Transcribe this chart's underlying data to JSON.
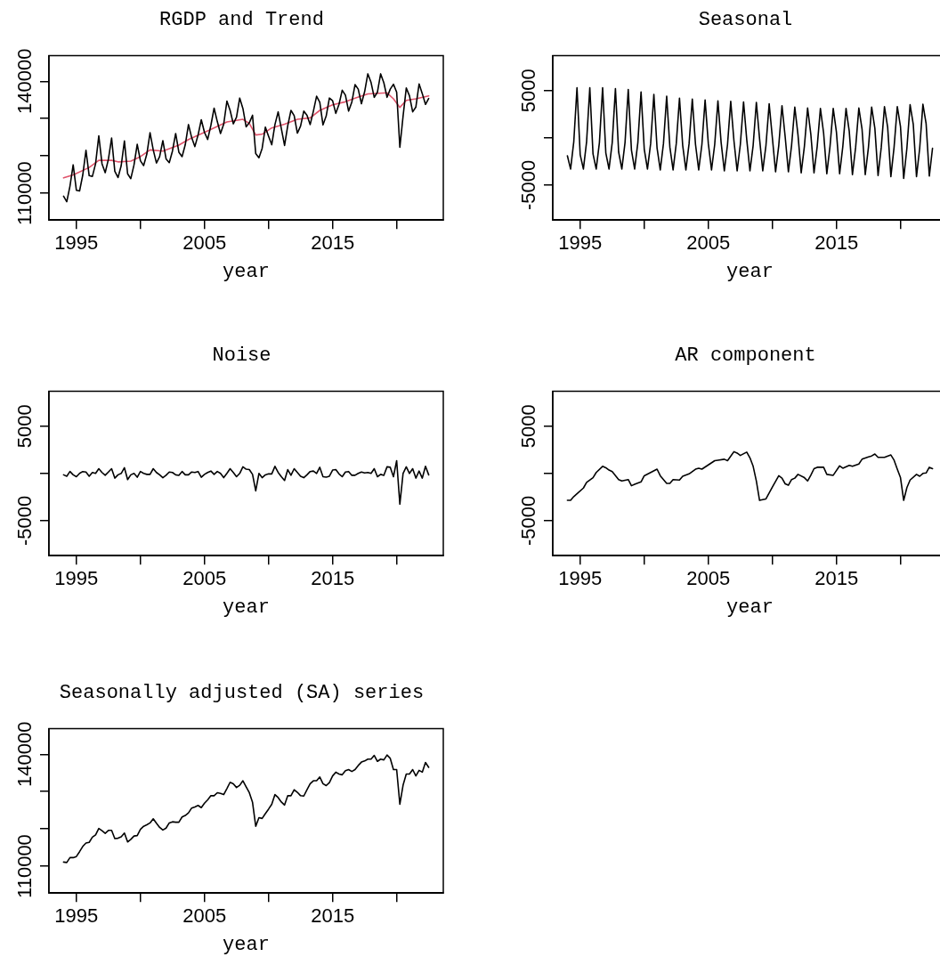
{
  "chart_data": [
    {
      "type": "line",
      "title": "RGDP and Trend",
      "xlabel": "year",
      "xlim": [
        1992.86,
        2023.64
      ],
      "xticks": [
        1995,
        {
          "value": 2000,
          "label": null
        },
        2005,
        {
          "value": 2010,
          "label": null
        },
        2015,
        {
          "value": 2020,
          "label": null
        }
      ],
      "ylim": [
        102800,
        146900
      ],
      "yticks": [
        110000,
        {
          "value": 120000,
          "label": null
        },
        {
          "value": 130000,
          "label": null
        },
        140000
      ],
      "x": [
        1994,
        1994.25,
        1994.5,
        1994.75,
        1995,
        1995.25,
        1995.5,
        1995.75,
        1996,
        1996.25,
        1996.5,
        1996.75,
        1997,
        1997.25,
        1997.5,
        1997.75,
        1998,
        1998.25,
        1998.5,
        1998.75,
        1999,
        1999.25,
        1999.5,
        1999.75,
        2000,
        2000.25,
        2000.5,
        2000.75,
        2001,
        2001.25,
        2001.5,
        2001.75,
        2002,
        2002.25,
        2002.5,
        2002.75,
        2003,
        2003.25,
        2003.5,
        2003.75,
        2004,
        2004.25,
        2004.5,
        2004.75,
        2005,
        2005.25,
        2005.5,
        2005.75,
        2006,
        2006.25,
        2006.5,
        2006.75,
        2007,
        2007.25,
        2007.5,
        2007.75,
        2008,
        2008.25,
        2008.5,
        2008.75,
        2009,
        2009.25,
        2009.5,
        2009.75,
        2010,
        2010.25,
        2010.5,
        2010.75,
        2011,
        2011.25,
        2011.5,
        2011.75,
        2012,
        2012.25,
        2012.5,
        2012.75,
        2013,
        2013.25,
        2013.5,
        2013.75,
        2014,
        2014.25,
        2014.5,
        2014.75,
        2015,
        2015.25,
        2015.5,
        2015.75,
        2016,
        2016.25,
        2016.5,
        2016.75,
        2017,
        2017.25,
        2017.5,
        2017.75,
        2018,
        2018.25,
        2018.5,
        2018.75,
        2019,
        2019.25,
        2019.5,
        2019.75,
        2020,
        2020.25,
        2020.5,
        2020.75,
        2021,
        2021.25,
        2021.5,
        2021.75,
        2022,
        2022.25,
        2022.5
      ],
      "series": [
        {
          "color": "#000000",
          "values": [
            109200,
            107700,
            111900,
            117600,
            110800,
            110600,
            114900,
            121500,
            114700,
            114500,
            117900,
            125400,
            117900,
            115500,
            119100,
            124800,
            115900,
            114200,
            117400,
            124000,
            115200,
            113900,
            117600,
            123100,
            118700,
            117400,
            120500,
            126200,
            121600,
            118100,
            119800,
            124100,
            119200,
            118200,
            121300,
            126000,
            121000,
            119800,
            123000,
            128400,
            124900,
            122500,
            125600,
            129700,
            126300,
            124400,
            128200,
            132800,
            129200,
            126000,
            128500,
            134700,
            132200,
            128600,
            130400,
            135500,
            132700,
            127800,
            128900,
            130900,
            120600,
            119500,
            122000,
            127700,
            125300,
            123000,
            128400,
            131800,
            127300,
            122800,
            128100,
            132200,
            130800,
            126100,
            128000,
            132000,
            130900,
            128400,
            132000,
            136000,
            134400,
            128300,
            130700,
            135500,
            134800,
            131400,
            133800,
            137600,
            136300,
            132000,
            134400,
            139100,
            137900,
            134000,
            137200,
            142000,
            139700,
            135700,
            137100,
            142000,
            139600,
            135700,
            137900,
            139200,
            137100,
            122300,
            130600,
            138200,
            136100,
            131800,
            133100,
            139300,
            136700,
            133800,
            135400
          ]
        },
        {
          "color": "#df536b",
          "x": [
            1994,
            1994.75,
            1996,
            1996.75,
            1997.75,
            1998.25,
            1999.25,
            2000,
            2000.75,
            2001.75,
            2003,
            2003.75,
            2005.25,
            2006.75,
            2008,
            2008.5,
            2009,
            2009.5,
            2010.25,
            2011.25,
            2012.25,
            2013.25,
            2014,
            2015,
            2016,
            2016.75,
            2017.75,
            2019.25,
            2019.75,
            2020.25,
            2020.75,
            2021.5,
            2022.5
          ],
          "values": [
            114100,
            114900,
            116900,
            118800,
            118800,
            118400,
            118600,
            119800,
            121600,
            121300,
            122900,
            124400,
            126700,
            129100,
            129800,
            128700,
            125600,
            125800,
            127500,
            128500,
            129800,
            130200,
            132200,
            133700,
            134500,
            135500,
            136600,
            136900,
            135300,
            133000,
            134900,
            135300,
            136100
          ]
        }
      ]
    },
    {
      "type": "line",
      "title": "Seasonal",
      "xlabel": "year",
      "xlim": [
        1992.86,
        2023.64
      ],
      "xticks": [
        1995,
        {
          "value": 2000,
          "label": null
        },
        2005,
        {
          "value": 2010,
          "label": null
        },
        2015,
        {
          "value": 2020,
          "label": null
        }
      ],
      "ylim": [
        -8700,
        8700
      ],
      "yticks": [
        -5000,
        {
          "value": 0,
          "label": null
        },
        5000
      ],
      "x": [
        1994,
        1994.25,
        1994.5,
        1994.75,
        1995,
        1995.25,
        1995.5,
        1995.75,
        1996,
        1996.25,
        1996.5,
        1996.75,
        1997,
        1997.25,
        1997.5,
        1997.75,
        1998,
        1998.25,
        1998.5,
        1998.75,
        1999,
        1999.25,
        1999.5,
        1999.75,
        2000,
        2000.25,
        2000.5,
        2000.75,
        2001,
        2001.25,
        2001.5,
        2001.75,
        2002,
        2002.25,
        2002.5,
        2002.75,
        2003,
        2003.25,
        2003.5,
        2003.75,
        2004,
        2004.25,
        2004.5,
        2004.75,
        2005,
        2005.25,
        2005.5,
        2005.75,
        2006,
        2006.25,
        2006.5,
        2006.75,
        2007,
        2007.25,
        2007.5,
        2007.75,
        2008,
        2008.25,
        2008.5,
        2008.75,
        2009,
        2009.25,
        2009.5,
        2009.75,
        2010,
        2010.25,
        2010.5,
        2010.75,
        2011,
        2011.25,
        2011.5,
        2011.75,
        2012,
        2012.25,
        2012.5,
        2012.75,
        2013,
        2013.25,
        2013.5,
        2013.75,
        2014,
        2014.25,
        2014.5,
        2014.75,
        2015,
        2015.25,
        2015.5,
        2015.75,
        2016,
        2016.25,
        2016.5,
        2016.75,
        2017,
        2017.25,
        2017.5,
        2017.75,
        2018,
        2018.25,
        2018.5,
        2018.75,
        2019,
        2019.25,
        2019.5,
        2019.75,
        2020,
        2020.25,
        2020.5,
        2020.75,
        2021,
        2021.25,
        2021.5,
        2021.75,
        2022,
        2022.25,
        2022.5
      ],
      "series": [
        {
          "color": "#000000",
          "values": [
            -1900,
            -3300,
            -400,
            5300,
            -1800,
            -3300,
            -400,
            5300,
            -1700,
            -3300,
            -500,
            5300,
            -1600,
            -3300,
            -500,
            5200,
            -1500,
            -3300,
            -500,
            5100,
            -1300,
            -3300,
            -500,
            4850,
            -1200,
            -3300,
            -600,
            4600,
            -1100,
            -3400,
            -600,
            4400,
            -1000,
            -3400,
            -600,
            4200,
            -800,
            -3400,
            -600,
            4100,
            -700,
            -3400,
            -700,
            4000,
            -600,
            -3400,
            -700,
            3900,
            -500,
            -3500,
            -700,
            3850,
            -300,
            -3500,
            -700,
            3800,
            -200,
            -3500,
            -800,
            3750,
            -100,
            -3500,
            -800,
            3600,
            0,
            -3600,
            -800,
            3400,
            100,
            -3600,
            -800,
            3250,
            300,
            -3700,
            -900,
            3150,
            400,
            -3700,
            -900,
            3100,
            500,
            -3800,
            -900,
            3100,
            600,
            -3800,
            -900,
            3100,
            700,
            -3900,
            -1000,
            3150,
            900,
            -3900,
            -1000,
            3250,
            1000,
            -4000,
            -1000,
            3300,
            1100,
            -4100,
            -1000,
            3300,
            1200,
            -4300,
            -1100,
            3500,
            1400,
            -4100,
            -1100,
            3550,
            1500,
            -4050,
            -1100
          ]
        }
      ]
    },
    {
      "type": "line",
      "title": "Noise",
      "xlabel": "year",
      "xlim": [
        1992.86,
        2023.64
      ],
      "xticks": [
        1995,
        {
          "value": 2000,
          "label": null
        },
        2005,
        {
          "value": 2010,
          "label": null
        },
        2015,
        {
          "value": 2020,
          "label": null
        }
      ],
      "ylim": [
        -8700,
        8700
      ],
      "yticks": [
        -5000,
        {
          "value": 0,
          "label": null
        },
        5000
      ],
      "x": [
        1994,
        1994.25,
        1994.5,
        1994.75,
        1995,
        1995.25,
        1995.5,
        1995.75,
        1996,
        1996.25,
        1996.5,
        1996.75,
        1997,
        1997.25,
        1997.5,
        1997.75,
        1998,
        1998.25,
        1998.5,
        1998.75,
        1999,
        1999.25,
        1999.5,
        1999.75,
        2000,
        2000.25,
        2000.5,
        2000.75,
        2001,
        2001.25,
        2001.5,
        2001.75,
        2002,
        2002.25,
        2002.5,
        2002.75,
        2003,
        2003.25,
        2003.5,
        2003.75,
        2004,
        2004.25,
        2004.5,
        2004.75,
        2005,
        2005.25,
        2005.5,
        2005.75,
        2006,
        2006.25,
        2006.5,
        2006.75,
        2007,
        2007.25,
        2007.5,
        2007.75,
        2008,
        2008.25,
        2008.5,
        2008.75,
        2009,
        2009.25,
        2009.5,
        2009.75,
        2010,
        2010.25,
        2010.5,
        2010.75,
        2011,
        2011.25,
        2011.5,
        2011.75,
        2012,
        2012.25,
        2012.5,
        2012.75,
        2013,
        2013.25,
        2013.5,
        2013.75,
        2014,
        2014.25,
        2014.5,
        2014.75,
        2015,
        2015.25,
        2015.5,
        2015.75,
        2016,
        2016.25,
        2016.5,
        2016.75,
        2017,
        2017.25,
        2017.5,
        2017.75,
        2018,
        2018.25,
        2018.5,
        2018.75,
        2019,
        2019.25,
        2019.5,
        2019.75,
        2020,
        2020.25,
        2020.5,
        2020.75,
        2021,
        2021.25,
        2021.5,
        2021.75,
        2022,
        2022.25,
        2022.5
      ],
      "series": [
        {
          "color": "#000000",
          "values": [
            -150,
            -300,
            200,
            -150,
            -350,
            0,
            200,
            150,
            -300,
            100,
            0,
            500,
            100,
            -200,
            150,
            500,
            -500,
            -150,
            0,
            600,
            -650,
            -150,
            0,
            -400,
            200,
            0,
            -100,
            -100,
            500,
            100,
            -150,
            -450,
            -200,
            150,
            100,
            -150,
            -200,
            200,
            -150,
            -150,
            150,
            100,
            200,
            -400,
            -100,
            100,
            250,
            -100,
            200,
            0,
            -450,
            0,
            500,
            100,
            -350,
            0,
            700,
            450,
            400,
            -100,
            -1850,
            0,
            -450,
            -150,
            -50,
            -50,
            750,
            100,
            -350,
            -750,
            400,
            -200,
            500,
            100,
            -300,
            -450,
            -150,
            200,
            250,
            0,
            650,
            -350,
            -400,
            -300,
            350,
            400,
            -50,
            -350,
            150,
            200,
            -200,
            -200,
            0,
            150,
            50,
            100,
            0,
            500,
            -350,
            -100,
            -200,
            700,
            650,
            -350,
            1350,
            -3250,
            0,
            700,
            0,
            500,
            -500,
            250,
            -500,
            750,
            -150
          ]
        }
      ]
    },
    {
      "type": "line",
      "title": "AR component",
      "xlabel": "year",
      "xlim": [
        1992.86,
        2023.64
      ],
      "xticks": [
        1995,
        {
          "value": 2000,
          "label": null
        },
        2005,
        {
          "value": 2010,
          "label": null
        },
        2015,
        {
          "value": 2020,
          "label": null
        }
      ],
      "ylim": [
        -8700,
        8700
      ],
      "yticks": [
        -5000,
        {
          "value": 0,
          "label": null
        },
        5000
      ],
      "x": [
        1994,
        1994.25,
        1994.5,
        1994.75,
        1995.25,
        1995.5,
        1996,
        1996.25,
        1996.75,
        1997,
        1997.25,
        1997.5,
        1998,
        1998.25,
        1998.75,
        1999,
        1999.25,
        1999.75,
        2000,
        2000.5,
        2001,
        2001.25,
        2001.75,
        2002,
        2002.25,
        2002.75,
        2003,
        2003.5,
        2004,
        2004.25,
        2004.5,
        2005,
        2005.5,
        2005.75,
        2006.25,
        2006.5,
        2007,
        2007.25,
        2007.5,
        2008,
        2008.25,
        2008.5,
        2008.75,
        2009,
        2009.5,
        2010,
        2010.5,
        2010.75,
        2011,
        2011.25,
        2011.5,
        2011.75,
        2012,
        2012.5,
        2012.75,
        2013,
        2013.25,
        2013.5,
        2014,
        2014.25,
        2014.75,
        2015.25,
        2015.5,
        2016,
        2016.25,
        2016.75,
        2017,
        2017.5,
        2017.75,
        2018,
        2018.25,
        2018.75,
        2019.25,
        2019.5,
        2019.75,
        2020,
        2020.25,
        2020.5,
        2020.75,
        2021.25,
        2021.5,
        2021.75,
        2022,
        2022.25,
        2022.5
      ],
      "series": [
        {
          "color": "#000000",
          "values": [
            -2850,
            -2850,
            -2450,
            -2150,
            -1550,
            -950,
            -450,
            100,
            750,
            600,
            350,
            200,
            -650,
            -800,
            -650,
            -1300,
            -1150,
            -900,
            -250,
            100,
            450,
            -250,
            -1050,
            -1050,
            -650,
            -700,
            -300,
            -50,
            450,
            550,
            450,
            900,
            1350,
            1400,
            1500,
            1350,
            2300,
            2150,
            1900,
            2250,
            1650,
            750,
            -800,
            -2850,
            -2700,
            -1450,
            -250,
            -500,
            -1100,
            -1250,
            -650,
            -500,
            -100,
            -450,
            -800,
            -200,
            500,
            650,
            650,
            -100,
            -200,
            800,
            550,
            850,
            750,
            1000,
            1500,
            1750,
            1850,
            2050,
            1700,
            1700,
            1950,
            1400,
            450,
            -450,
            -2850,
            -1500,
            -700,
            -100,
            -300,
            0,
            50,
            650,
            500
          ]
        }
      ]
    },
    {
      "type": "line",
      "title": "Seasonally adjusted (SA) series",
      "xlabel": "year",
      "xlim": [
        1992.86,
        2023.64
      ],
      "xticks": [
        1995,
        {
          "value": 2000,
          "label": null
        },
        2005,
        {
          "value": 2010,
          "label": null
        },
        2015,
        {
          "value": 2020,
          "label": null
        }
      ],
      "ylim": [
        102800,
        146900
      ],
      "yticks": [
        110000,
        {
          "value": 120000,
          "label": null
        },
        {
          "value": 130000,
          "label": null
        },
        140000
      ],
      "x": [
        1994,
        1994.25,
        1994.5,
        1994.75,
        1995,
        1995.25,
        1995.5,
        1995.75,
        1996,
        1996.25,
        1996.5,
        1996.75,
        1997,
        1997.25,
        1997.5,
        1997.75,
        1998,
        1998.25,
        1998.5,
        1998.75,
        1999,
        1999.25,
        1999.5,
        1999.75,
        2000,
        2000.25,
        2000.5,
        2000.75,
        2001,
        2001.25,
        2001.5,
        2001.75,
        2002,
        2002.25,
        2002.5,
        2002.75,
        2003,
        2003.25,
        2003.5,
        2003.75,
        2004,
        2004.25,
        2004.5,
        2004.75,
        2005,
        2005.25,
        2005.5,
        2005.75,
        2006,
        2006.25,
        2006.5,
        2006.75,
        2007,
        2007.25,
        2007.5,
        2007.75,
        2008,
        2008.25,
        2008.5,
        2008.75,
        2009,
        2009.25,
        2009.5,
        2009.75,
        2010,
        2010.25,
        2010.5,
        2010.75,
        2011,
        2011.25,
        2011.5,
        2011.75,
        2012,
        2012.25,
        2012.5,
        2012.75,
        2013,
        2013.25,
        2013.5,
        2013.75,
        2014,
        2014.25,
        2014.5,
        2014.75,
        2015,
        2015.25,
        2015.5,
        2015.75,
        2016,
        2016.25,
        2016.5,
        2016.75,
        2017,
        2017.25,
        2017.5,
        2017.75,
        2018,
        2018.25,
        2018.5,
        2018.75,
        2019,
        2019.25,
        2019.5,
        2019.75,
        2020,
        2020.25,
        2020.5,
        2020.75,
        2021,
        2021.25,
        2021.5,
        2021.75,
        2022,
        2022.25,
        2022.5
      ],
      "series": [
        {
          "color": "#000000",
          "values": [
            111100,
            111000,
            112300,
            112300,
            112600,
            113900,
            115300,
            116200,
            116400,
            117800,
            118400,
            120100,
            119500,
            118800,
            119600,
            119600,
            117400,
            117500,
            117900,
            118900,
            116500,
            117200,
            118100,
            118200,
            119900,
            120700,
            121100,
            121600,
            122700,
            121500,
            120400,
            119700,
            120200,
            121600,
            121900,
            121800,
            121800,
            123200,
            123600,
            124300,
            125600,
            125900,
            126300,
            125700,
            126900,
            127800,
            128900,
            128900,
            129700,
            129500,
            129200,
            130800,
            132500,
            132100,
            131100,
            131700,
            132900,
            131300,
            129700,
            127100,
            120700,
            123000,
            122800,
            124100,
            125300,
            126600,
            129200,
            128400,
            127200,
            126400,
            128900,
            128900,
            130500,
            129800,
            128900,
            128800,
            130500,
            132100,
            132900,
            132900,
            133900,
            132100,
            131600,
            132400,
            134200,
            135200,
            134700,
            134500,
            135600,
            135900,
            135400,
            135900,
            137000,
            137900,
            138200,
            138700,
            138700,
            139700,
            138100,
            138700,
            138500,
            139800,
            138900,
            135900,
            135900,
            126600,
            131700,
            134700,
            134700,
            135900,
            134200,
            135700,
            135200,
            137800,
            136500
          ]
        }
      ]
    }
  ]
}
